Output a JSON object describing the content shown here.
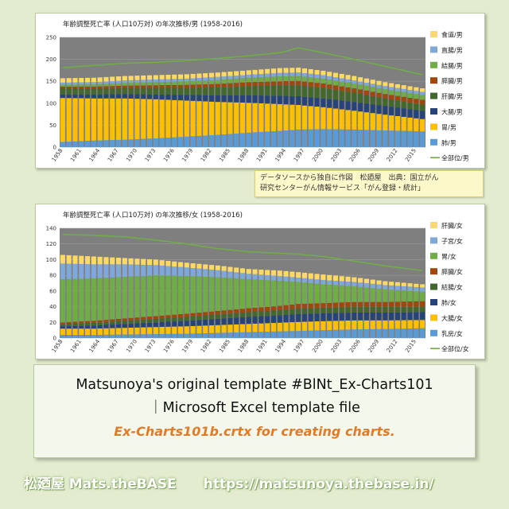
{
  "chart_data": [
    {
      "type": "bar",
      "stacked": true,
      "title": "年齢調整死亡率 (人口10万対) の年次推移/男 (1958-2016)",
      "ylim": [
        0,
        250
      ],
      "yticks": [
        0,
        50,
        100,
        150,
        200,
        250
      ],
      "xstart": 1958,
      "xend": 2016,
      "xtick_labels": [
        "1958",
        "1961",
        "1964",
        "1967",
        "1970",
        "1973",
        "1976",
        "1979",
        "1982",
        "1985",
        "1988",
        "1991",
        "1994",
        "1997",
        "2000",
        "2003",
        "2006",
        "2009",
        "2012",
        "2015"
      ],
      "grid": true,
      "legend_position": "right",
      "keyframes": [
        1958,
        1963,
        1968,
        1973,
        1978,
        1983,
        1988,
        1993,
        1996,
        2000,
        2005,
        2010,
        2016
      ],
      "series": [
        {
          "name": "肺/男",
          "type": "bar",
          "color": "#5b9bd5",
          "values": [
            12,
            15,
            17,
            20,
            24,
            28,
            33,
            37,
            40,
            41,
            40,
            38,
            36
          ]
        },
        {
          "name": "胃/男",
          "type": "bar",
          "color": "#ffc000",
          "values": [
            100,
            96,
            94,
            89,
            82,
            75,
            68,
            61,
            56,
            50,
            43,
            36,
            28
          ]
        },
        {
          "name": "大腸/男",
          "type": "bar",
          "color": "#264478",
          "values": [
            8,
            9,
            10,
            11,
            13,
            15,
            17,
            19,
            20,
            20,
            20,
            20,
            19
          ]
        },
        {
          "name": "肝臓/男",
          "type": "bar",
          "color": "#43682b",
          "values": [
            15,
            14,
            14,
            15,
            16,
            18,
            21,
            24,
            25,
            24,
            21,
            17,
            14
          ]
        },
        {
          "name": "膵臓/男",
          "type": "bar",
          "color": "#9e480e",
          "values": [
            3,
            4,
            5,
            6,
            7,
            8,
            9,
            9,
            10,
            10,
            10,
            10,
            11
          ]
        },
        {
          "name": "結腸/男",
          "type": "bar",
          "color": "#70ad47",
          "values": [
            4,
            5,
            6,
            7,
            8,
            9,
            10,
            11,
            11,
            11,
            11,
            11,
            11
          ]
        },
        {
          "name": "直腸/男",
          "type": "bar",
          "color": "#7fa7d9",
          "values": [
            5,
            5,
            6,
            6,
            6,
            7,
            7,
            8,
            8,
            8,
            7,
            7,
            7
          ]
        },
        {
          "name": "食道/男",
          "type": "bar",
          "color": "#ffd965",
          "values": [
            10,
            10,
            10,
            10,
            10,
            10,
            10,
            11,
            11,
            10,
            10,
            9,
            8
          ]
        },
        {
          "name": "全部位/男",
          "type": "line",
          "color": "#70ad47",
          "values": [
            181,
            186,
            191,
            193,
            197,
            202,
            208,
            215,
            226,
            215,
            200,
            184,
            165
          ]
        }
      ]
    },
    {
      "type": "bar",
      "stacked": true,
      "title": "年齢調整死亡率 (人口10万対) の年次推移/女 (1958-2016)",
      "ylim": [
        0,
        140
      ],
      "yticks": [
        0,
        20,
        40,
        60,
        80,
        100,
        120,
        140
      ],
      "xstart": 1958,
      "xend": 2016,
      "xtick_labels": [
        "1958",
        "1961",
        "1964",
        "1967",
        "1970",
        "1973",
        "1976",
        "1979",
        "1982",
        "1985",
        "1988",
        "1991",
        "1994",
        "1997",
        "2000",
        "2003",
        "2006",
        "2009",
        "2012",
        "2015"
      ],
      "grid": true,
      "legend_position": "right",
      "keyframes": [
        1958,
        1963,
        1968,
        1973,
        1978,
        1983,
        1988,
        1993,
        1996,
        2000,
        2005,
        2010,
        2016
      ],
      "series": [
        {
          "name": "乳房/女",
          "type": "bar",
          "color": "#5b9bd5",
          "values": [
            4,
            4,
            4.5,
            5,
            5.5,
            6.5,
            7.5,
            8.5,
            9,
            10,
            11,
            11.5,
            12.5
          ]
        },
        {
          "name": "大腸/女",
          "type": "bar",
          "color": "#ffc000",
          "values": [
            8,
            8,
            8.5,
            9,
            9.5,
            10,
            10.5,
            11,
            11.5,
            11.5,
            11.5,
            11,
            10.5
          ]
        },
        {
          "name": "肺/女",
          "type": "bar",
          "color": "#264478",
          "values": [
            3,
            4,
            5,
            6,
            7,
            8,
            9,
            9.5,
            10,
            10,
            10,
            10,
            10
          ]
        },
        {
          "name": "結腸/女",
          "type": "bar",
          "color": "#43682b",
          "values": [
            3,
            3.5,
            4,
            4.5,
            5,
            5.5,
            6,
            6.5,
            7,
            7,
            7,
            7,
            7
          ]
        },
        {
          "name": "膵臓/女",
          "type": "bar",
          "color": "#9e480e",
          "values": [
            2,
            2.5,
            3,
            3.5,
            4,
            4.5,
            5,
            5.5,
            6,
            6,
            6.5,
            6.5,
            7
          ]
        },
        {
          "name": "胃/女",
          "type": "bar",
          "color": "#70ad47",
          "values": [
            55,
            54,
            53,
            52,
            48,
            43,
            37,
            32,
            28,
            24,
            20,
            16,
            12
          ]
        },
        {
          "name": "子宮/女",
          "type": "bar",
          "color": "#7fa7d9",
          "values": [
            20,
            18,
            16,
            13,
            11,
            9,
            7,
            6,
            5.5,
            5.5,
            5.5,
            5.5,
            5.5
          ]
        },
        {
          "name": "肝臓/女",
          "type": "bar",
          "color": "#ffd965",
          "values": [
            11,
            10,
            8,
            7,
            6,
            6,
            6,
            7,
            7,
            7,
            6,
            5,
            4
          ]
        },
        {
          "name": "全部位/女",
          "type": "line",
          "color": "#70ad47",
          "values": [
            132,
            131,
            129,
            125,
            120,
            114,
            110,
            108,
            107,
            104,
            98,
            92,
            86
          ]
        }
      ]
    }
  ],
  "source_note": {
    "line1": "データソースから独自に作図　松廼屋　出典：国立がん",
    "line2": "研究センターがん情報サービス「がん登録・統計」"
  },
  "template": {
    "line1": "Matsunoya's original template #BlNt_Ex-Charts101",
    "line2": "｜Microsoft Excel  template file",
    "line3": "Ex-Charts101b.crtx    for creating charts."
  },
  "footer": {
    "brand": "松廼屋 Mats.theBASE",
    "url": "https://matsunoya.thebase.in/"
  },
  "colors": {
    "page_background": "#e3eccf",
    "plot_background": "#7f7f7f",
    "accent_orange": "#e07b2a"
  }
}
